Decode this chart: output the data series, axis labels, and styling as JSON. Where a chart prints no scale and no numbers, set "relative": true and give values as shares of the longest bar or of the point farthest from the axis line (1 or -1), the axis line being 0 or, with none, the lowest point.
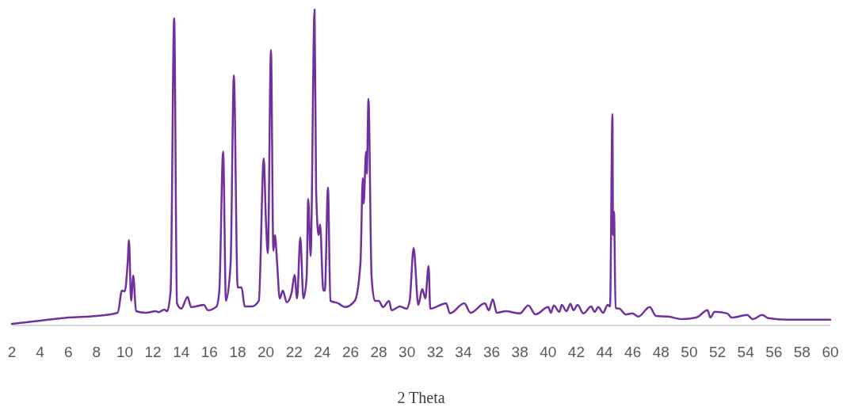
{
  "chart_data": {
    "type": "line",
    "xlabel": "2 Theta",
    "relative": true,
    "tick_labels": "x",
    "grid": false,
    "marker": "none",
    "line_style": "solid",
    "xlim": [
      2,
      60
    ],
    "xticks": [
      2,
      4,
      6,
      8,
      10,
      12,
      14,
      16,
      18,
      20,
      22,
      24,
      26,
      28,
      30,
      32,
      34,
      36,
      38,
      40,
      42,
      44,
      46,
      48,
      50,
      52,
      54,
      56,
      58,
      60
    ],
    "series": [
      {
        "color": "#7030a0",
        "x": [
          2,
          4,
          6,
          8,
          9.5,
          9.8,
          10.0,
          10.2,
          10.3,
          10.45,
          10.6,
          10.8,
          11.5,
          12.2,
          12.4,
          12.8,
          13.0,
          13.25,
          13.5,
          13.7,
          14.0,
          14.45,
          14.7,
          15.6,
          15.9,
          16.5,
          16.7,
          16.97,
          17.17,
          17.5,
          17.73,
          18.0,
          18.28,
          18.5,
          19.0,
          19.5,
          19.85,
          20.0,
          20.14,
          20.36,
          20.53,
          20.64,
          20.8,
          20.98,
          21.2,
          21.48,
          21.82,
          22.03,
          22.21,
          22.44,
          22.66,
          22.89,
          23.0,
          23.17,
          23.45,
          23.56,
          23.73,
          23.84,
          24.07,
          24.18,
          24.4,
          24.57,
          25.13,
          25.6,
          26.3,
          26.7,
          26.87,
          26.93,
          27.1,
          27.15,
          27.27,
          27.49,
          27.72,
          28.0,
          28.3,
          28.73,
          28.9,
          29.5,
          29.96,
          30.19,
          30.47,
          30.8,
          31.08,
          31.3,
          31.53,
          31.65,
          32.04,
          32.77,
          33.05,
          34.06,
          34.5,
          35.52,
          35.8,
          36.08,
          36.36,
          37.0,
          38.0,
          38.6,
          39.1,
          40.01,
          40.2,
          40.4,
          40.8,
          40.97,
          41.3,
          41.58,
          41.8,
          42.09,
          42.5,
          43.05,
          43.3,
          43.55,
          43.9,
          44.22,
          44.39,
          44.56,
          44.6,
          44.67,
          44.78,
          45.07,
          45.5,
          45.96,
          46.4,
          47.2,
          47.65,
          48.5,
          49.5,
          50.5,
          51.3,
          51.5,
          51.8,
          52.7,
          53.0,
          54.1,
          54.5,
          55.17,
          55.6,
          57,
          60
        ],
        "values": [
          0.005,
          0.015,
          0.025,
          0.03,
          0.04,
          0.11,
          0.108,
          0.195,
          0.27,
          0.078,
          0.158,
          0.045,
          0.04,
          0.045,
          0.042,
          0.05,
          0.045,
          0.11,
          0.972,
          0.07,
          0.053,
          0.09,
          0.058,
          0.065,
          0.048,
          0.06,
          0.11,
          0.55,
          0.078,
          0.195,
          0.792,
          0.12,
          0.12,
          0.06,
          0.06,
          0.078,
          0.529,
          0.336,
          0.228,
          0.872,
          0.236,
          0.286,
          0.195,
          0.085,
          0.11,
          0.073,
          0.103,
          0.16,
          0.085,
          0.278,
          0.085,
          0.153,
          0.4,
          0.22,
          1.0,
          0.43,
          0.286,
          0.32,
          0.11,
          0.11,
          0.436,
          0.078,
          0.07,
          0.058,
          0.078,
          0.195,
          0.466,
          0.386,
          0.55,
          0.48,
          0.717,
          0.153,
          0.078,
          0.078,
          0.058,
          0.078,
          0.048,
          0.06,
          0.053,
          0.078,
          0.245,
          0.065,
          0.115,
          0.085,
          0.188,
          0.053,
          0.058,
          0.07,
          0.038,
          0.07,
          0.04,
          0.07,
          0.048,
          0.083,
          0.04,
          0.045,
          0.038,
          0.063,
          0.035,
          0.058,
          0.04,
          0.063,
          0.043,
          0.065,
          0.045,
          0.068,
          0.048,
          0.065,
          0.038,
          0.06,
          0.043,
          0.058,
          0.04,
          0.065,
          0.06,
          0.669,
          0.286,
          0.36,
          0.055,
          0.053,
          0.035,
          0.038,
          0.028,
          0.058,
          0.03,
          0.028,
          0.02,
          0.025,
          0.048,
          0.025,
          0.043,
          0.038,
          0.025,
          0.033,
          0.02,
          0.033,
          0.023,
          0.018,
          0.018
        ]
      }
    ]
  }
}
